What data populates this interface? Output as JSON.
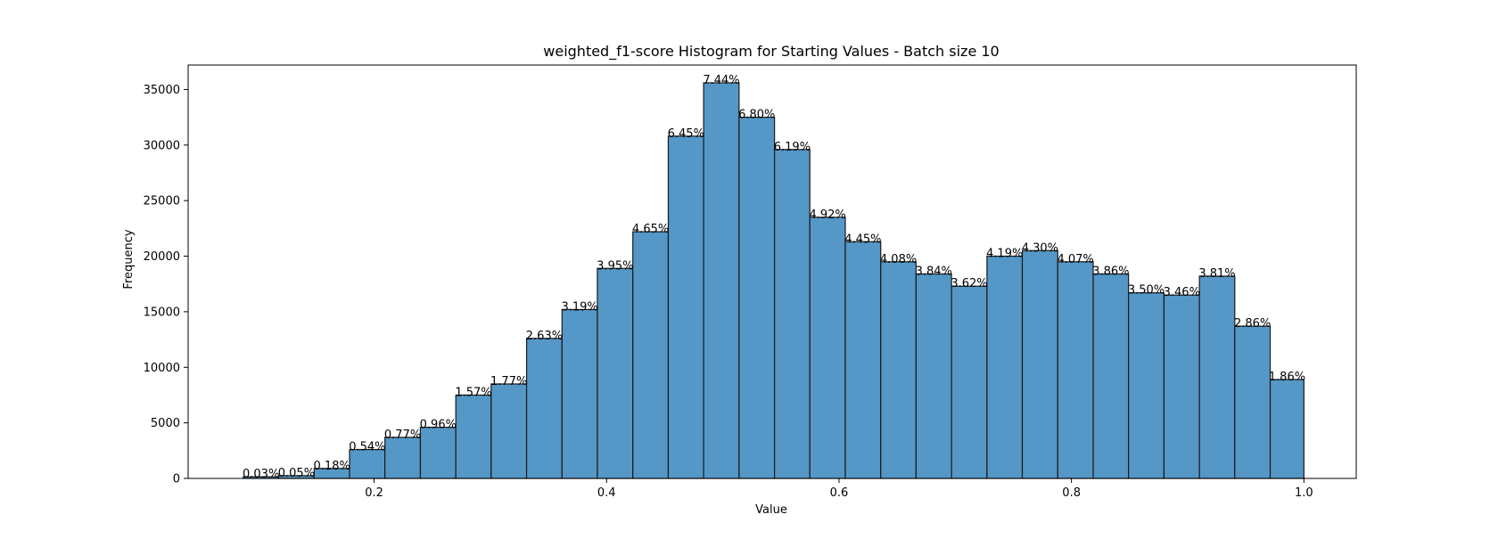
{
  "chart_data": {
    "type": "bar",
    "title": "weighted_f1-score Histogram for Starting Values - Batch size 10",
    "xlabel": "Value",
    "ylabel": "Frequency",
    "xlim": [
      0.04,
      1.045
    ],
    "ylim": [
      0,
      37200
    ],
    "x_ticks": [
      0.2,
      0.4,
      0.6,
      0.8,
      1.0
    ],
    "x_tick_labels": [
      "0.2",
      "0.4",
      "0.6",
      "0.8",
      "1.0"
    ],
    "y_ticks": [
      0,
      5000,
      10000,
      15000,
      20000,
      25000,
      30000,
      35000
    ],
    "y_tick_labels": [
      "0",
      "5000",
      "10000",
      "15000",
      "20000",
      "25000",
      "30000",
      "35000"
    ],
    "bin_edges": [
      0.0874,
      0.1179,
      0.1484,
      0.1789,
      0.2093,
      0.2398,
      0.2703,
      0.3007,
      0.3312,
      0.3617,
      0.3921,
      0.4226,
      0.4531,
      0.4835,
      0.514,
      0.5445,
      0.5749,
      0.6054,
      0.6359,
      0.6663,
      0.6968,
      0.7273,
      0.7577,
      0.7882,
      0.8187,
      0.8491,
      0.8796,
      0.9101,
      0.9405,
      0.971,
      1.0
    ],
    "values": [
      150,
      250,
      900,
      2600,
      3700,
      4600,
      7500,
      8500,
      12600,
      15200,
      18900,
      22200,
      30800,
      35600,
      32500,
      29600,
      23500,
      21300,
      19500,
      18400,
      17300,
      20000,
      20500,
      19500,
      18400,
      16700,
      16500,
      18200,
      13700,
      8900
    ],
    "percent_labels": [
      "0.03%",
      "0.05%",
      "0.18%",
      "0.54%",
      "0.77%",
      "0.96%",
      "1.57%",
      "1.77%",
      "2.63%",
      "3.19%",
      "3.95%",
      "4.65%",
      "6.45%",
      "7.44%",
      "6.80%",
      "6.19%",
      "4.92%",
      "4.45%",
      "4.08%",
      "3.84%",
      "3.62%",
      "4.19%",
      "4.30%",
      "4.07%",
      "3.86%",
      "3.50%",
      "3.46%",
      "3.81%",
      "2.86%",
      "1.86%"
    ],
    "colors": {
      "bar_fill": "#5597c6",
      "bar_edge": "#1a1a1a",
      "axis": "#000000"
    },
    "grid": false,
    "legend": "none"
  }
}
